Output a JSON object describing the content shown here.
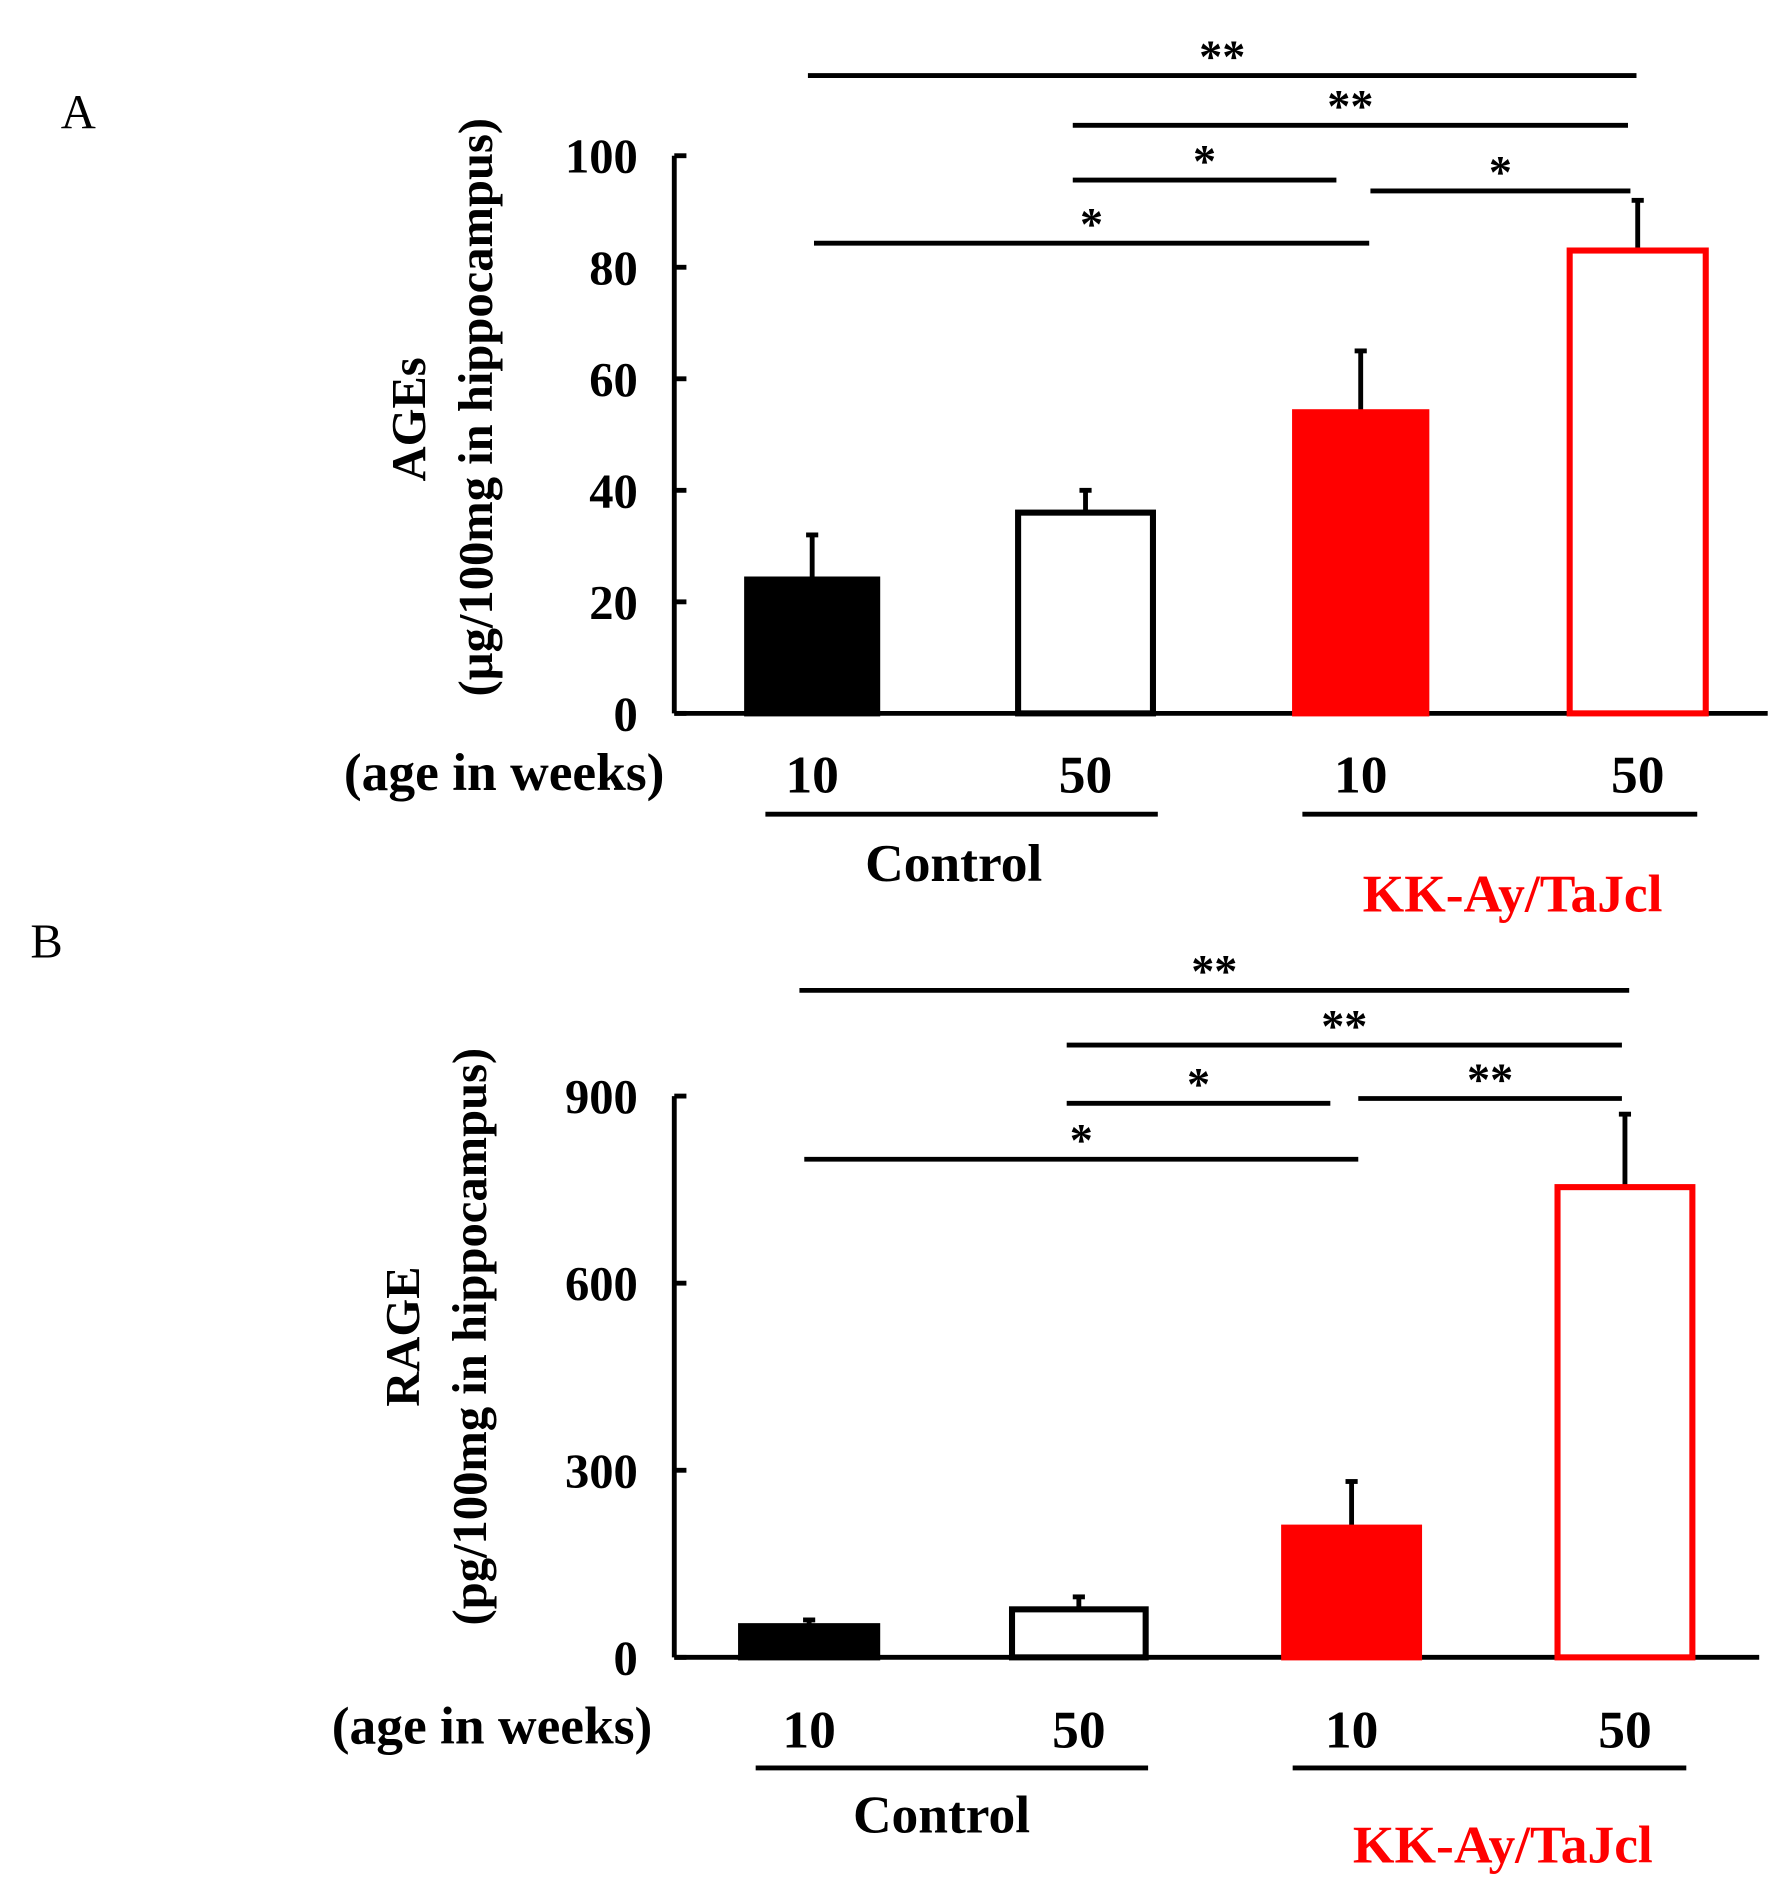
{
  "colors": {
    "black": "#000000",
    "red": "#ff0000",
    "white": "#ffffff"
  },
  "chart_data": [
    {
      "type": "bar",
      "panel_label": "A",
      "ylabel_line1": "AGEs",
      "ylabel_line2": "(µg/100mg in hippocampus)",
      "xlabel": "(age in weeks)",
      "ylim": [
        0,
        100
      ],
      "yticks": [
        0,
        20,
        40,
        60,
        80,
        100
      ],
      "categories": [
        "10",
        "50",
        "10",
        "50"
      ],
      "groups": [
        {
          "name": "Control",
          "color": "#000000"
        },
        {
          "name": "KK-Ay/TaJcl",
          "color": "#ff0000"
        }
      ],
      "values": [
        24,
        36,
        54,
        83
      ],
      "errors": [
        8,
        4,
        11,
        9
      ],
      "fills": [
        "#000000",
        "#ffffff",
        "#ff0000",
        "#ffffff"
      ],
      "strokes": [
        "#000000",
        "#000000",
        "#ff0000",
        "#ff0000"
      ],
      "comparisons": [
        {
          "from": 0,
          "to": 3,
          "label": "**"
        },
        {
          "from": 1,
          "to": 3,
          "label": "**"
        },
        {
          "from": 1,
          "to": 2,
          "label": "*"
        },
        {
          "from": 2,
          "to": 3,
          "label": "*"
        },
        {
          "from": 0,
          "to": 2,
          "label": "*"
        }
      ]
    },
    {
      "type": "bar",
      "panel_label": "B",
      "ylabel_line1": "RAGE",
      "ylabel_line2": "(pg/100mg in hippocampus)",
      "xlabel": "(age in weeks)",
      "ylim": [
        0,
        900
      ],
      "yticks": [
        0,
        300,
        600,
        900
      ],
      "categories": [
        "10",
        "50",
        "10",
        "50"
      ],
      "groups": [
        {
          "name": "Control",
          "color": "#000000"
        },
        {
          "name": "KK-Ay/TaJcl",
          "color": "#ff0000"
        }
      ],
      "values": [
        50,
        77,
        208,
        754
      ],
      "errors": [
        10,
        20,
        74,
        117
      ],
      "fills": [
        "#000000",
        "#ffffff",
        "#ff0000",
        "#ffffff"
      ],
      "strokes": [
        "#000000",
        "#000000",
        "#ff0000",
        "#ff0000"
      ],
      "comparisons": [
        {
          "from": 0,
          "to": 3,
          "label": "**"
        },
        {
          "from": 1,
          "to": 3,
          "label": "**"
        },
        {
          "from": 1,
          "to": 2,
          "label": "*"
        },
        {
          "from": 2,
          "to": 3,
          "label": "**"
        },
        {
          "from": 0,
          "to": 2,
          "label": "*"
        }
      ]
    }
  ]
}
